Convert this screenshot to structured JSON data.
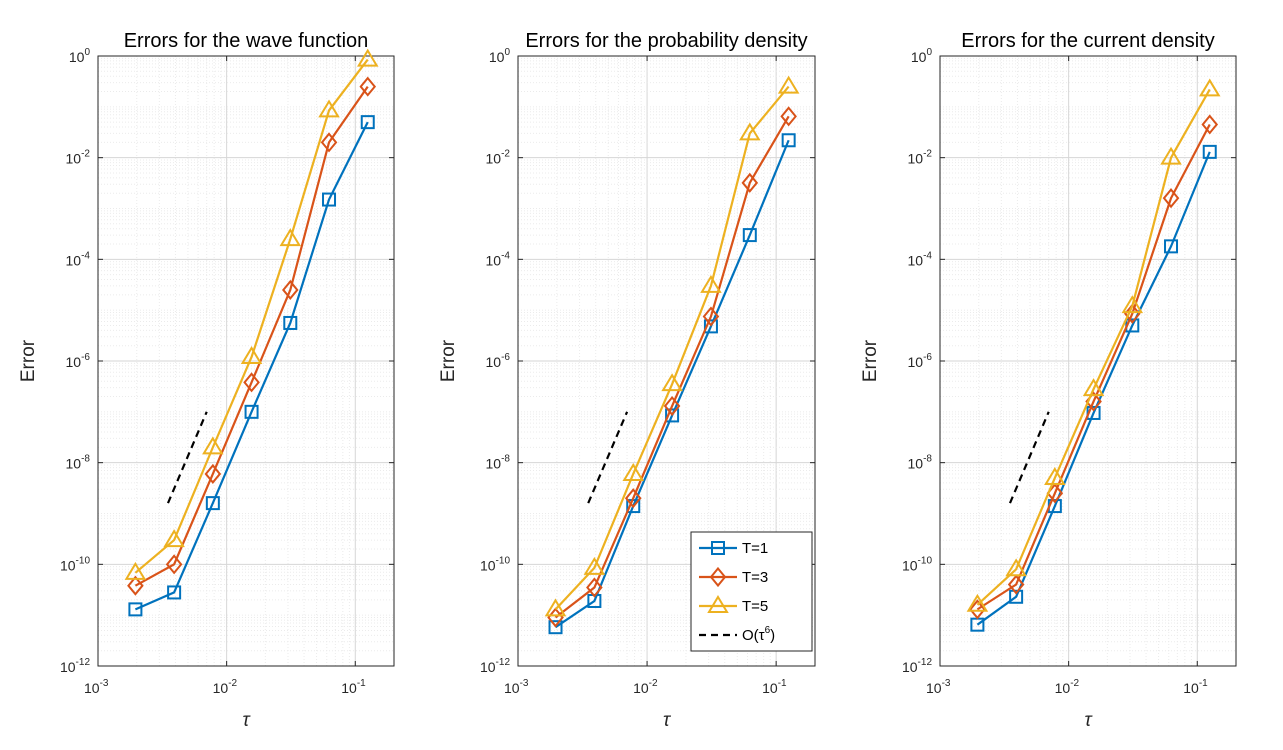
{
  "colors": {
    "T1": "#0072BD",
    "T3": "#D95319",
    "T5": "#EDB120",
    "ref": "#000000",
    "grid": "#DEDEDE",
    "axis": "#262626"
  },
  "legend": {
    "placement": "bottom-right of middle panel",
    "entries": [
      {
        "label": "T=1",
        "series": "T1",
        "marker": "square"
      },
      {
        "label": "T=3",
        "series": "T3",
        "marker": "diamond"
      },
      {
        "label": "T=5",
        "series": "T5",
        "marker": "triangle"
      },
      {
        "label": "O(τ",
        "sup": "6",
        "label_end": ")",
        "series": "ref",
        "marker": "dashed"
      }
    ]
  },
  "chart_data": [
    {
      "type": "line",
      "title": "Errors for the wave function",
      "xlabel": "τ",
      "ylabel": "Error",
      "xscale": "log",
      "yscale": "log",
      "xlim": [
        0.001,
        0.2
      ],
      "ylim": [
        1e-12,
        1
      ],
      "grid": true,
      "x": [
        0.001953125,
        0.00390625,
        0.0078125,
        0.015625,
        0.03125,
        0.0625,
        0.125
      ],
      "series": [
        {
          "name": "T=1",
          "key": "T1",
          "marker": "square",
          "values": [
            1.3e-11,
            2.8e-11,
            1.6e-09,
            1e-07,
            5.6e-06,
            0.0015,
            0.05
          ]
        },
        {
          "name": "T=3",
          "key": "T3",
          "marker": "diamond",
          "values": [
            3.8e-11,
            1e-10,
            6e-09,
            3.8e-07,
            2.5e-05,
            0.02,
            0.25
          ]
        },
        {
          "name": "T=5",
          "key": "T5",
          "marker": "triangle",
          "values": [
            6.8e-11,
            3e-10,
            2e-08,
            1.2e-06,
            0.00025,
            0.085,
            0.85
          ]
        }
      ],
      "reference": {
        "name": "O(τ^6)",
        "x": [
          0.0035,
          0.007
        ],
        "y": [
          1.6e-09,
          1e-07
        ]
      },
      "xticks": [
        {
          "value": 0.001,
          "base": "10",
          "exp": "-3"
        },
        {
          "value": 0.01,
          "base": "10",
          "exp": "-2"
        },
        {
          "value": 0.1,
          "base": "10",
          "exp": "-1"
        }
      ],
      "yticks": [
        {
          "value": 1e-12,
          "base": "10",
          "exp": "-12"
        },
        {
          "value": 1e-10,
          "base": "10",
          "exp": "-10"
        },
        {
          "value": 1e-08,
          "base": "10",
          "exp": "-8"
        },
        {
          "value": 1e-06,
          "base": "10",
          "exp": "-6"
        },
        {
          "value": 0.0001,
          "base": "10",
          "exp": "-4"
        },
        {
          "value": 0.01,
          "base": "10",
          "exp": "-2"
        },
        {
          "value": 1,
          "base": "10",
          "exp": "0"
        }
      ]
    },
    {
      "type": "line",
      "title": "Errors for the probability density",
      "xlabel": "τ",
      "ylabel": "Error",
      "xscale": "log",
      "yscale": "log",
      "xlim": [
        0.001,
        0.2
      ],
      "ylim": [
        1e-12,
        1
      ],
      "grid": true,
      "x": [
        0.001953125,
        0.00390625,
        0.0078125,
        0.015625,
        0.03125,
        0.0625,
        0.125
      ],
      "series": [
        {
          "name": "T=1",
          "key": "T1",
          "marker": "square",
          "values": [
            5.8e-12,
            1.9e-11,
            1.4e-09,
            8.5e-08,
            4.8e-06,
            0.0003,
            0.022
          ]
        },
        {
          "name": "T=3",
          "key": "T3",
          "marker": "diamond",
          "values": [
            9e-12,
            3.5e-11,
            2e-09,
            1.3e-07,
            7.5e-06,
            0.0032,
            0.065
          ]
        },
        {
          "name": "T=5",
          "key": "T5",
          "marker": "triangle",
          "values": [
            1.3e-11,
            8.5e-11,
            6e-09,
            3.5e-07,
            3e-05,
            0.03,
            0.25
          ]
        }
      ],
      "reference": {
        "name": "O(τ^6)",
        "x": [
          0.0035,
          0.007
        ],
        "y": [
          1.6e-09,
          1e-07
        ]
      },
      "xticks": [
        {
          "value": 0.001,
          "base": "10",
          "exp": "-3"
        },
        {
          "value": 0.01,
          "base": "10",
          "exp": "-2"
        },
        {
          "value": 0.1,
          "base": "10",
          "exp": "-1"
        }
      ],
      "yticks": [
        {
          "value": 1e-12,
          "base": "10",
          "exp": "-12"
        },
        {
          "value": 1e-10,
          "base": "10",
          "exp": "-10"
        },
        {
          "value": 1e-08,
          "base": "10",
          "exp": "-8"
        },
        {
          "value": 1e-06,
          "base": "10",
          "exp": "-6"
        },
        {
          "value": 0.0001,
          "base": "10",
          "exp": "-4"
        },
        {
          "value": 0.01,
          "base": "10",
          "exp": "-2"
        },
        {
          "value": 1,
          "base": "10",
          "exp": "0"
        }
      ]
    },
    {
      "type": "line",
      "title": "Errors for the current density",
      "xlabel": "τ",
      "ylabel": "Error",
      "xscale": "log",
      "yscale": "log",
      "xlim": [
        0.001,
        0.2
      ],
      "ylim": [
        1e-12,
        1
      ],
      "grid": true,
      "x": [
        0.001953125,
        0.00390625,
        0.0078125,
        0.015625,
        0.03125,
        0.0625,
        0.125
      ],
      "series": [
        {
          "name": "T=1",
          "key": "T1",
          "marker": "square",
          "values": [
            6.5e-12,
            2.3e-11,
            1.4e-09,
            9.5e-08,
            5e-06,
            0.00018,
            0.013
          ]
        },
        {
          "name": "T=3",
          "key": "T3",
          "marker": "diamond",
          "values": [
            1.3e-11,
            4e-11,
            2.5e-09,
            1.6e-07,
            8.5e-06,
            0.0016,
            0.045
          ]
        },
        {
          "name": "T=5",
          "key": "T5",
          "marker": "triangle",
          "values": [
            1.6e-11,
            8e-11,
            5e-09,
            2.8e-07,
            1.2e-05,
            0.01,
            0.22
          ]
        }
      ],
      "reference": {
        "name": "O(τ^6)",
        "x": [
          0.0035,
          0.007
        ],
        "y": [
          1.6e-09,
          1e-07
        ]
      },
      "xticks": [
        {
          "value": 0.001,
          "base": "10",
          "exp": "-3"
        },
        {
          "value": 0.01,
          "base": "10",
          "exp": "-2"
        },
        {
          "value": 0.1,
          "base": "10",
          "exp": "-1"
        }
      ],
      "yticks": [
        {
          "value": 1e-12,
          "base": "10",
          "exp": "-12"
        },
        {
          "value": 1e-10,
          "base": "10",
          "exp": "-10"
        },
        {
          "value": 1e-08,
          "base": "10",
          "exp": "-8"
        },
        {
          "value": 1e-06,
          "base": "10",
          "exp": "-6"
        },
        {
          "value": 0.0001,
          "base": "10",
          "exp": "-4"
        },
        {
          "value": 0.01,
          "base": "10",
          "exp": "-2"
        },
        {
          "value": 1,
          "base": "10",
          "exp": "0"
        }
      ]
    }
  ]
}
